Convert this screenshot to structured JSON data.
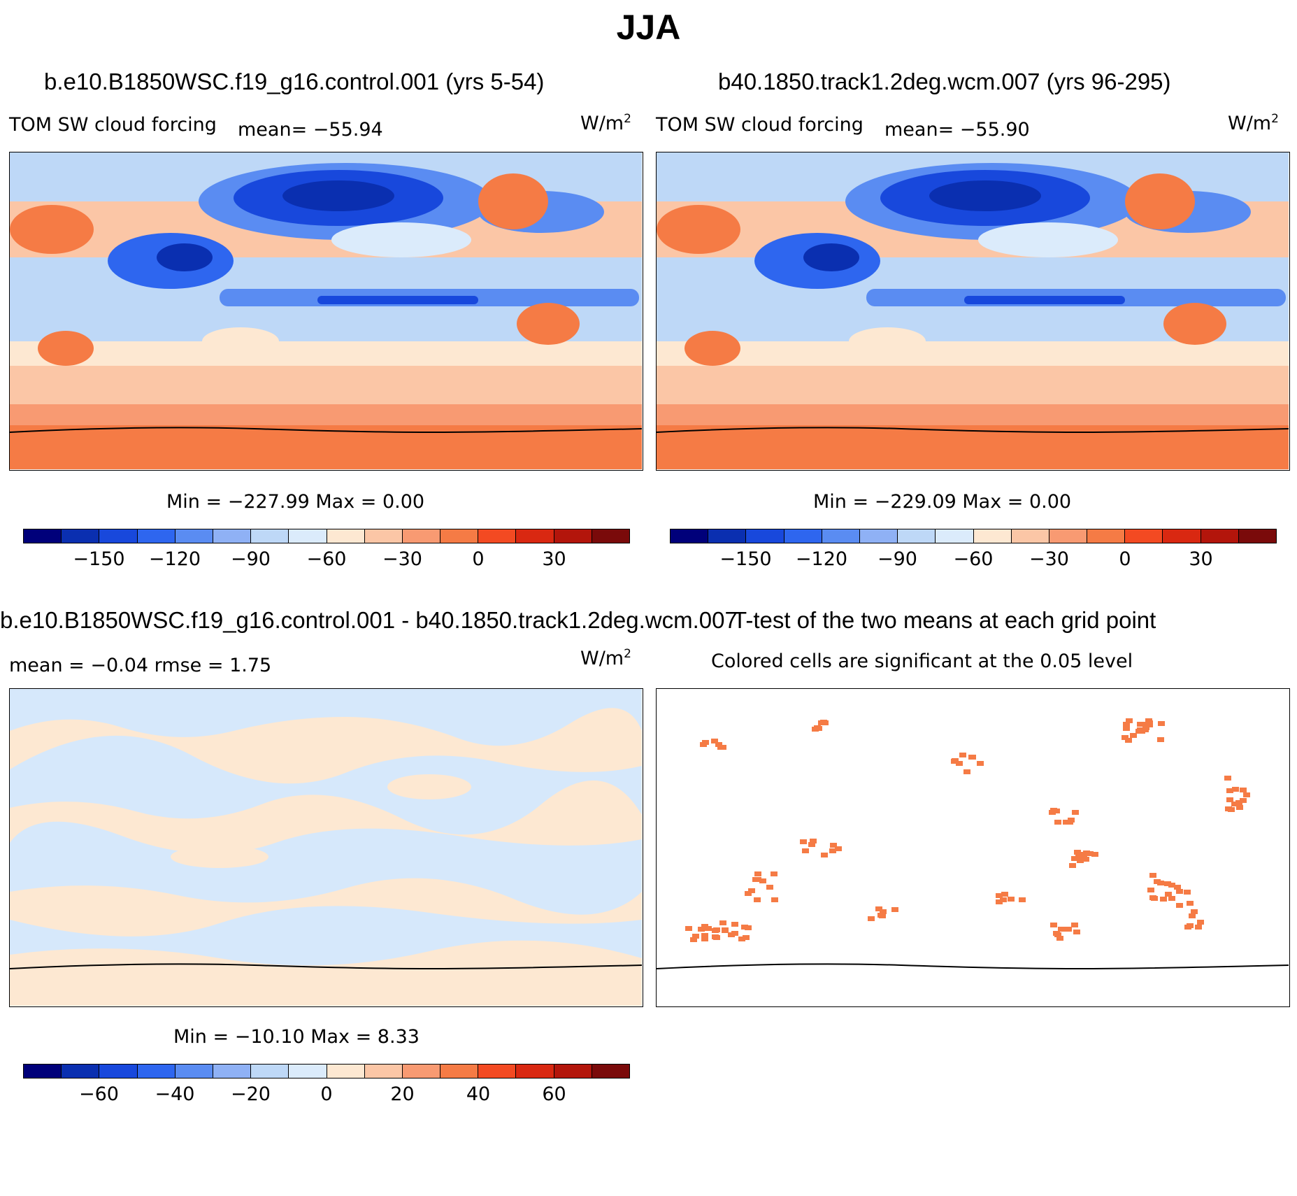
{
  "title": "JJA",
  "panels": {
    "top_left": {
      "title": "b.e10.B1850WSC.f19_g16.control.001 (yrs 5-54)",
      "variable": "TOM SW cloud forcing",
      "mean": "mean= −55.94",
      "units": "W/m",
      "units_exp": "2",
      "minmax": "Min = −227.99 Max =    0.00"
    },
    "top_right": {
      "title": "b40.1850.track1.2deg.wcm.007 (yrs 96-295)",
      "variable": "TOM SW cloud forcing",
      "mean": "mean= −55.90",
      "units": "W/m",
      "units_exp": "2",
      "minmax": "Min = −229.09 Max =    0.00"
    },
    "bottom_left": {
      "title": "b.e10.B1850WSC.f19_g16.control.001 - b40.1850.track1.2deg.wcm.007",
      "stats": "mean =  −0.04     rmse =    1.75",
      "units": "W/m",
      "units_exp": "2",
      "minmax": "Min = −10.10 Max =    8.33"
    },
    "bottom_right": {
      "title": "T-test of the two means at each grid point",
      "subtitle": "Colored cells are significant at the 0.05 level"
    }
  },
  "colorbars": {
    "absolute": {
      "colors": [
        "#00007a",
        "#0a2fb0",
        "#1848dc",
        "#2e66ef",
        "#5a8cf2",
        "#8fb1f5",
        "#bed8f7",
        "#dbebfb",
        "#fde8d2",
        "#fbc6a6",
        "#f89a72",
        "#f57b45",
        "#f34a22",
        "#d92811",
        "#b3150b",
        "#7a0a0a"
      ],
      "ticks": [
        "−150",
        "−120",
        "−90",
        "−60",
        "−30",
        "0",
        "30"
      ],
      "tick_positions": [
        2,
        4,
        6,
        8,
        10,
        12,
        14
      ]
    },
    "difference": {
      "colors": [
        "#00007a",
        "#0a2fb0",
        "#1848dc",
        "#2e66ef",
        "#5a8cf2",
        "#8fb1f5",
        "#bed8f7",
        "#dbebfb",
        "#fde8d2",
        "#fbc6a6",
        "#f89a72",
        "#f57b45",
        "#f34a22",
        "#d92811",
        "#b3150b",
        "#7a0a0a"
      ],
      "ticks": [
        "−60",
        "−40",
        "−20",
        "0",
        "20",
        "40",
        "60"
      ],
      "tick_positions": [
        2,
        4,
        6,
        8,
        10,
        12,
        14
      ]
    }
  },
  "map_colors": {
    "ocean_diff": "#d6e8fb",
    "land_diff": "#fde8d2",
    "sig": "#f57b45"
  }
}
